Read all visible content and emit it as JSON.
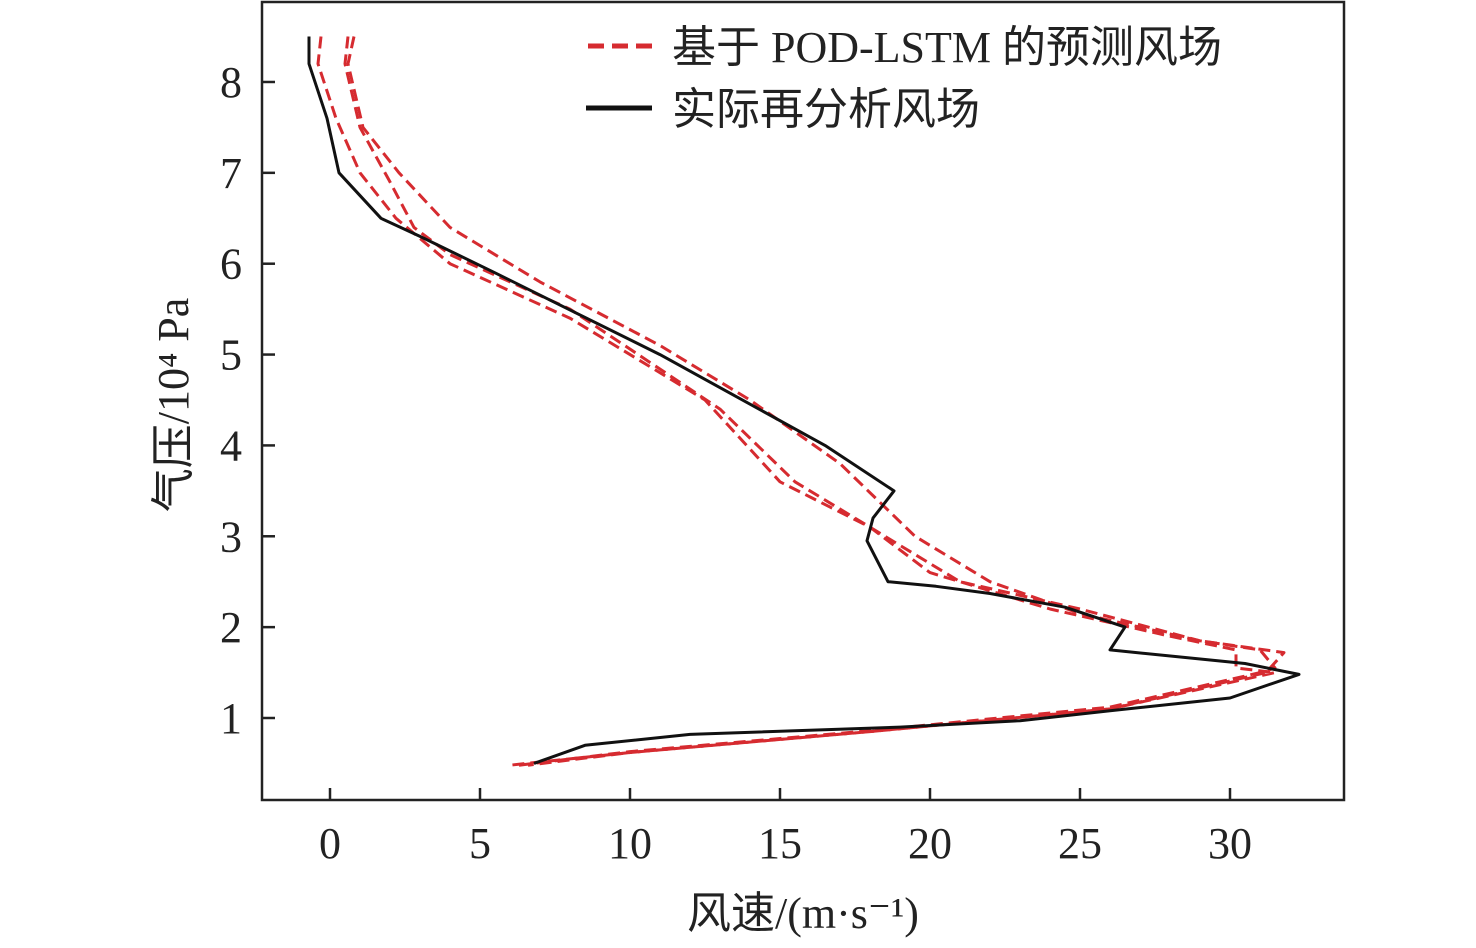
{
  "chart_data": {
    "type": "line",
    "title": "",
    "xlabel": "风速/(m·s⁻¹)",
    "ylabel": "气压/10⁴ Pa",
    "xlim": [
      -2.3,
      33.8
    ],
    "ylim": [
      0.1,
      8.9
    ],
    "xticks": [
      0,
      5,
      10,
      15,
      20,
      25,
      30
    ],
    "yticks": [
      1,
      2,
      3,
      4,
      5,
      6,
      7,
      8
    ],
    "grid": false,
    "legend_position": "top-right",
    "colors": {
      "predicted": "#d62b30",
      "actual": "#111111"
    },
    "series": [
      {
        "name": "基于 POD-LSTM 的预测风场",
        "style": "dashed",
        "color": "#d62b30",
        "legend": true,
        "points": [
          [
            -0.3,
            8.5
          ],
          [
            -0.4,
            8.2
          ],
          [
            0.2,
            7.6
          ],
          [
            1.0,
            7.0
          ],
          [
            2.2,
            6.5
          ],
          [
            4,
            6.0
          ],
          [
            8,
            5.4
          ],
          [
            12.5,
            4.5
          ],
          [
            15,
            3.6
          ],
          [
            18,
            3.1
          ],
          [
            20,
            2.6
          ],
          [
            24,
            2.2
          ],
          [
            28,
            1.9
          ],
          [
            30.2,
            1.75
          ],
          [
            30.2,
            1.55
          ],
          [
            31.5,
            1.5
          ],
          [
            26,
            1.1
          ],
          [
            18,
            0.85
          ],
          [
            10,
            0.62
          ],
          [
            6,
            0.48
          ]
        ]
      },
      {
        "name": "基于 POD-LSTM 的预测风场",
        "style": "dashed",
        "color": "#d62b30",
        "legend": false,
        "points": [
          [
            0.6,
            8.5
          ],
          [
            0.5,
            8.2
          ],
          [
            1.0,
            7.5
          ],
          [
            2.0,
            6.9
          ],
          [
            2.8,
            6.4
          ],
          [
            4,
            6.1
          ],
          [
            8,
            5.5
          ],
          [
            13,
            4.4
          ],
          [
            15.5,
            3.6
          ],
          [
            18.5,
            3.0
          ],
          [
            21,
            2.5
          ],
          [
            25,
            2.2
          ],
          [
            29,
            1.85
          ],
          [
            31,
            1.75
          ],
          [
            31.5,
            1.55
          ],
          [
            31,
            1.5
          ],
          [
            26,
            1.12
          ],
          [
            18,
            0.86
          ],
          [
            10,
            0.63
          ],
          [
            6.3,
            0.48
          ]
        ]
      },
      {
        "name": "基于 POD-LSTM 的预测风场",
        "style": "dashed",
        "color": "#d62b30",
        "legend": false,
        "points": [
          [
            0.8,
            8.5
          ],
          [
            0.6,
            8.2
          ],
          [
            1.1,
            7.5
          ],
          [
            2.3,
            7.0
          ],
          [
            4,
            6.4
          ],
          [
            7,
            5.8
          ],
          [
            11,
            5.1
          ],
          [
            14,
            4.5
          ],
          [
            17,
            3.8
          ],
          [
            19.5,
            3.0
          ],
          [
            22,
            2.5
          ],
          [
            25,
            2.15
          ],
          [
            29,
            1.85
          ],
          [
            31.8,
            1.72
          ],
          [
            31.2,
            1.5
          ],
          [
            26,
            1.1
          ],
          [
            18,
            0.85
          ],
          [
            10,
            0.62
          ],
          [
            6.6,
            0.48
          ]
        ]
      },
      {
        "name": "实际再分析风场",
        "style": "solid",
        "color": "#111111",
        "legend": true,
        "points": [
          [
            -0.7,
            8.5
          ],
          [
            -0.7,
            8.2
          ],
          [
            -0.1,
            7.6
          ],
          [
            0.3,
            7.0
          ],
          [
            1.7,
            6.5
          ],
          [
            3,
            6.3
          ],
          [
            5.5,
            5.9
          ],
          [
            11,
            5.0
          ],
          [
            16.5,
            4.0
          ],
          [
            18.8,
            3.5
          ],
          [
            18.1,
            3.2
          ],
          [
            17.9,
            2.95
          ],
          [
            18.6,
            2.5
          ],
          [
            20.2,
            2.45
          ],
          [
            22,
            2.37
          ],
          [
            24.5,
            2.22
          ],
          [
            26.5,
            2.0
          ],
          [
            26.0,
            1.75
          ],
          [
            30.5,
            1.6
          ],
          [
            32.3,
            1.48
          ],
          [
            30,
            1.22
          ],
          [
            26,
            1.08
          ],
          [
            23,
            0.97
          ],
          [
            19,
            0.9
          ],
          [
            12,
            0.82
          ],
          [
            8.5,
            0.7
          ],
          [
            6.8,
            0.5
          ]
        ]
      }
    ]
  }
}
